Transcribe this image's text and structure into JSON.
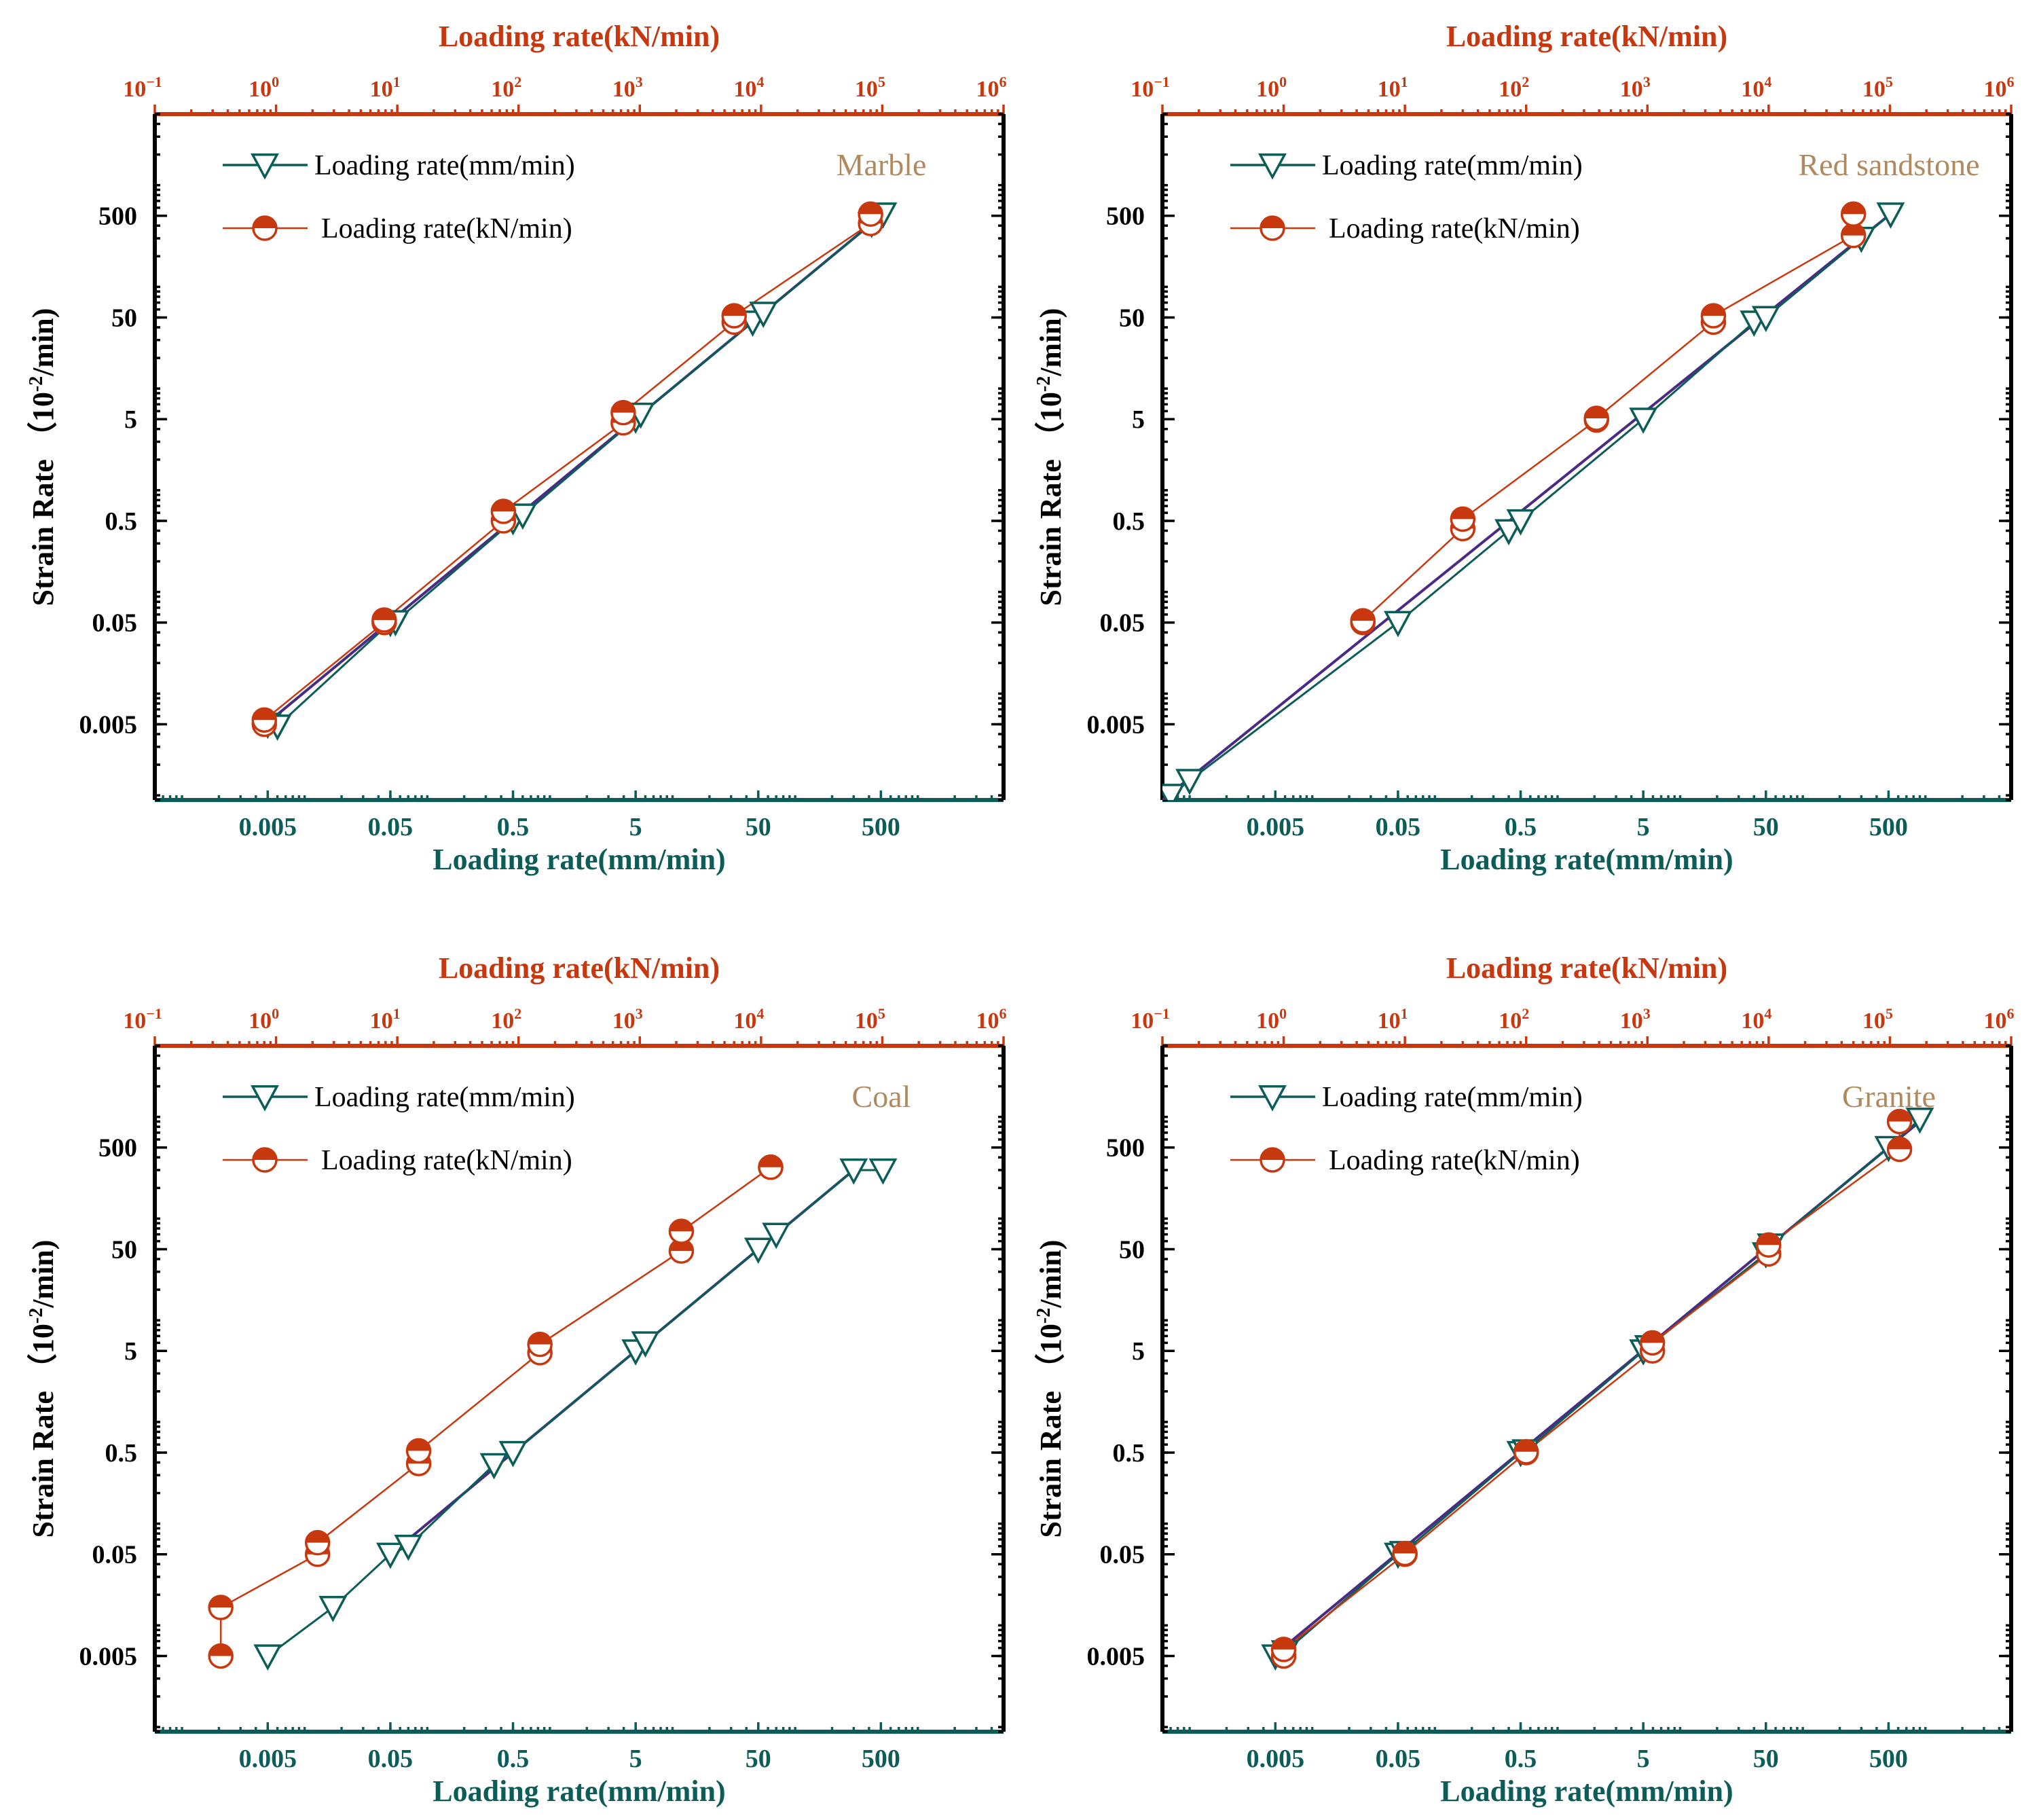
{
  "colors": {
    "mm_series": "#0c5c58",
    "kn_series": "#c8380f",
    "fit_line": "#4b2a86",
    "material_label": "#b08a5e",
    "frame": "#000000"
  },
  "legend": {
    "mm_label": "Loading rate(mm/min)",
    "kn_label": "Loading rate(kN/min)"
  },
  "axes": {
    "top_label": "Loading rate(kN/min)",
    "bottom_label": "Loading rate(mm/min)",
    "left_label": "Strain Rate （10",
    "left_label_sup": "-2",
    "left_label_unit": "/min)",
    "top_ticks": [
      {
        "base": "10",
        "exp": "−1",
        "value": 0.1
      },
      {
        "base": "10",
        "exp": "0",
        "value": 1
      },
      {
        "base": "10",
        "exp": "1",
        "value": 10
      },
      {
        "base": "10",
        "exp": "2",
        "value": 100
      },
      {
        "base": "10",
        "exp": "3",
        "value": 1000
      },
      {
        "base": "10",
        "exp": "4",
        "value": 10000
      },
      {
        "base": "10",
        "exp": "5",
        "value": 100000
      },
      {
        "base": "10",
        "exp": "6",
        "value": 1000000
      }
    ],
    "bottom_ticks": [
      "0.005",
      "0.05",
      "0.5",
      "5",
      "50",
      "500"
    ],
    "left_ticks": [
      "0.005",
      "0.05",
      "0.5",
      "5",
      "50",
      "500"
    ]
  },
  "chart_data": [
    {
      "type": "scatter",
      "material": "Marble",
      "xlabel_bottom": "Loading rate(mm/min)",
      "xlabel_top": "Loading rate(kN/min)",
      "ylabel": "Strain Rate （10-2/min)",
      "x_bottom_range": [
        0.0006,
        5000
      ],
      "x_top_range": [
        0.1,
        1000000
      ],
      "y_range": [
        0.0009,
        5000
      ],
      "series": [
        {
          "name": "Loading rate(mm/min)",
          "axis": "bottom",
          "points": [
            [
              0.005,
              0.005
            ],
            [
              0.006,
              0.0048
            ],
            [
              0.05,
              0.05
            ],
            [
              0.055,
              0.051
            ],
            [
              0.5,
              0.5
            ],
            [
              0.6,
              0.57
            ],
            [
              5,
              5
            ],
            [
              5.5,
              5.6
            ],
            [
              45,
              45
            ],
            [
              55,
              55
            ],
            [
              420,
              420
            ],
            [
              520,
              520
            ]
          ]
        },
        {
          "name": "Loading rate(kN/min)",
          "axis": "top",
          "points": [
            [
              0.8,
              0.005
            ],
            [
              0.8,
              0.0055
            ],
            [
              7.8,
              0.05
            ],
            [
              7.8,
              0.053
            ],
            [
              75,
              0.5
            ],
            [
              75,
              0.62
            ],
            [
              730,
              4.6
            ],
            [
              730,
              5.8
            ],
            [
              6000,
              45
            ],
            [
              6000,
              52
            ],
            [
              80000,
              420
            ],
            [
              80000,
              520
            ]
          ]
        },
        {
          "name": "fit",
          "axis": "bottom",
          "points": [
            [
              0.005,
              0.0052
            ],
            [
              520,
              520
            ]
          ]
        }
      ]
    },
    {
      "type": "scatter",
      "material": "Red sandstone",
      "xlabel_bottom": "Loading rate(mm/min)",
      "xlabel_top": "Loading rate(kN/min)",
      "ylabel": "Strain Rate （10-2/min)",
      "x_bottom_range": [
        0.0006,
        5000
      ],
      "x_top_range": [
        0.1,
        1000000
      ],
      "y_range": [
        0.0009,
        5000
      ],
      "series": [
        {
          "name": "Loading rate(mm/min)",
          "axis": "bottom",
          "points": [
            [
              0.0007,
              0.001
            ],
            [
              0.001,
              0.0014
            ],
            [
              0.05,
              0.05
            ],
            [
              0.4,
              0.4
            ],
            [
              0.5,
              0.5
            ],
            [
              5,
              5
            ],
            [
              40,
              45
            ],
            [
              50,
              50
            ],
            [
              300,
              300
            ],
            [
              520,
              520
            ]
          ]
        },
        {
          "name": "Loading rate(kN/min)",
          "axis": "top",
          "points": [
            [
              4.5,
              0.05
            ],
            [
              4.5,
              0.052
            ],
            [
              30,
              0.42
            ],
            [
              30,
              0.52
            ],
            [
              380,
              4.9
            ],
            [
              380,
              5.1
            ],
            [
              3500,
              45
            ],
            [
              3500,
              52
            ],
            [
              50000,
              320
            ],
            [
              50000,
              520
            ]
          ]
        },
        {
          "name": "fit",
          "axis": "bottom",
          "points": [
            [
              0.0006,
              0.0009
            ],
            [
              560,
              560
            ]
          ]
        }
      ]
    },
    {
      "type": "scatter",
      "material": "Coal",
      "xlabel_bottom": "Loading rate(mm/min)",
      "xlabel_top": "Loading rate(kN/min)",
      "ylabel": "Strain Rate （10-2/min)",
      "x_bottom_range": [
        0.0006,
        5000
      ],
      "x_top_range": [
        0.1,
        1000000
      ],
      "y_range": [
        0.0009,
        5000
      ],
      "series": [
        {
          "name": "Loading rate(mm/min)",
          "axis": "bottom",
          "points": [
            [
              0.005,
              0.005
            ],
            [
              0.017,
              0.015
            ],
            [
              0.05,
              0.05
            ],
            [
              0.07,
              0.06
            ],
            [
              0.35,
              0.38
            ],
            [
              0.5,
              0.5
            ],
            [
              5,
              5
            ],
            [
              6,
              6
            ],
            [
              50,
              50
            ],
            [
              70,
              70
            ],
            [
              300,
              300
            ],
            [
              520,
              300
            ]
          ]
        },
        {
          "name": "Loading rate(kN/min)",
          "axis": "top",
          "points": [
            [
              0.35,
              0.005
            ],
            [
              0.35,
              0.015
            ],
            [
              2.2,
              0.05
            ],
            [
              2.2,
              0.065
            ],
            [
              15,
              0.39
            ],
            [
              15,
              0.52
            ],
            [
              150,
              4.8
            ],
            [
              150,
              5.8
            ],
            [
              2200,
              48
            ],
            [
              2200,
              75
            ],
            [
              12000,
              320
            ],
            [
              12000,
              320
            ]
          ]
        },
        {
          "name": "fit",
          "axis": "bottom",
          "points": [
            [
              0.05,
              0.05
            ],
            [
              330,
              330
            ]
          ]
        }
      ]
    },
    {
      "type": "scatter",
      "material": "Granite",
      "xlabel_bottom": "Loading rate(mm/min)",
      "xlabel_top": "Loading rate(kN/min)",
      "ylabel": "Strain Rate （10-2/min)",
      "x_bottom_range": [
        0.0006,
        5000
      ],
      "x_top_range": [
        0.1,
        1000000
      ],
      "y_range": [
        0.0009,
        5000
      ],
      "series": [
        {
          "name": "Loading rate(mm/min)",
          "axis": "bottom",
          "points": [
            [
              0.005,
              0.005
            ],
            [
              0.006,
              0.0055
            ],
            [
              0.05,
              0.05
            ],
            [
              0.055,
              0.052
            ],
            [
              0.5,
              0.5
            ],
            [
              0.55,
              0.52
            ],
            [
              5,
              5
            ],
            [
              5.5,
              5.5
            ],
            [
              50,
              45
            ],
            [
              55,
              55
            ],
            [
              500,
              500
            ],
            [
              900,
              950
            ]
          ]
        },
        {
          "name": "Loading rate(kN/min)",
          "axis": "top",
          "points": [
            [
              1,
              0.005
            ],
            [
              1,
              0.0058
            ],
            [
              10,
              0.05
            ],
            [
              10,
              0.051
            ],
            [
              100,
              0.5
            ],
            [
              100,
              0.51
            ],
            [
              1100,
              5
            ],
            [
              1100,
              6
            ],
            [
              10000,
              45
            ],
            [
              10000,
              55
            ],
            [
              120000,
              480
            ],
            [
              120000,
              900
            ]
          ]
        },
        {
          "name": "fit",
          "axis": "bottom",
          "points": [
            [
              0.005,
              0.0052
            ],
            [
              900,
              900
            ]
          ]
        }
      ]
    }
  ]
}
